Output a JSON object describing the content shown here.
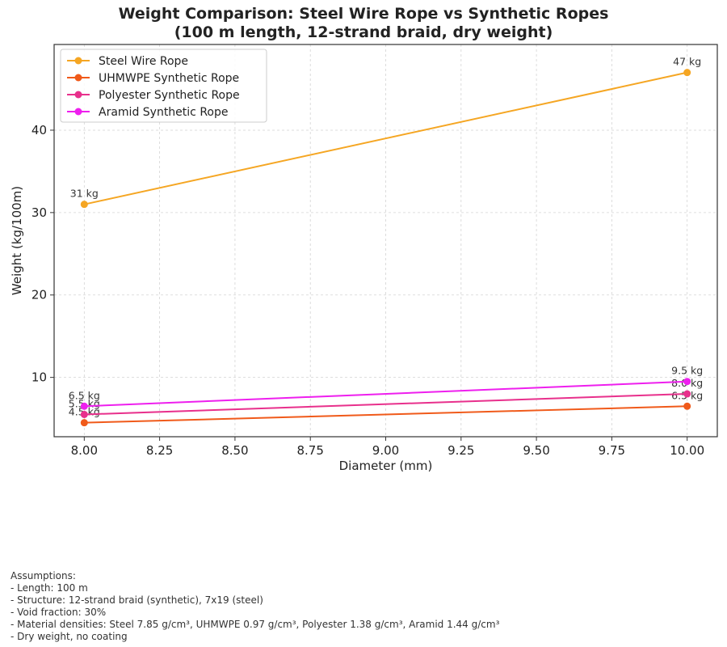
{
  "chart_data": {
    "type": "line",
    "title": "Weight Comparison: Steel Wire Rope vs Synthetic Ropes",
    "subtitle": "(100 m length, 12-strand braid, dry weight)",
    "xlabel": "Diameter (mm)",
    "ylabel": "Weight (kg/100m)",
    "xlim": [
      7.9,
      10.1
    ],
    "ylim": [
      2.8,
      50.4
    ],
    "xticks": [
      "8.00",
      "8.25",
      "8.50",
      "8.75",
      "9.00",
      "9.25",
      "9.50",
      "9.75",
      "10.00"
    ],
    "xtick_values": [
      8.0,
      8.25,
      8.5,
      8.75,
      9.0,
      9.25,
      9.5,
      9.75,
      10.0
    ],
    "yticks": [
      "10",
      "20",
      "30",
      "40"
    ],
    "ytick_values": [
      10,
      20,
      30,
      40
    ],
    "grid": true,
    "legend_position": "top-left",
    "x": [
      8.0,
      10.0
    ],
    "series": [
      {
        "name": "Steel Wire Rope",
        "color": "#f5a623",
        "values": [
          31,
          47
        ],
        "labels": [
          "31 kg",
          "47 kg"
        ]
      },
      {
        "name": "UHMWPE Synthetic Rope",
        "color": "#f05a1a",
        "values": [
          4.5,
          6.5
        ],
        "labels": [
          "4.5 kg",
          "6.5 kg"
        ]
      },
      {
        "name": "Polyester Synthetic Rope",
        "color": "#e8308c",
        "values": [
          5.5,
          8.0
        ],
        "labels": [
          "5.5 kg",
          "8.0 kg"
        ]
      },
      {
        "name": "Aramid Synthetic Rope",
        "color": "#ee1fee",
        "values": [
          6.5,
          9.5
        ],
        "labels": [
          "6.5 kg",
          "9.5 kg"
        ]
      }
    ]
  },
  "notes": {
    "heading": "Assumptions:",
    "lines": [
      "- Length: 100 m",
      "- Structure: 12-strand braid (synthetic), 7x19 (steel)",
      "- Void fraction: 30%",
      "- Material densities: Steel 7.85 g/cm³, UHMWPE 0.97 g/cm³, Polyester 1.38 g/cm³, Aramid 1.44 g/cm³",
      "- Dry weight, no coating"
    ]
  }
}
